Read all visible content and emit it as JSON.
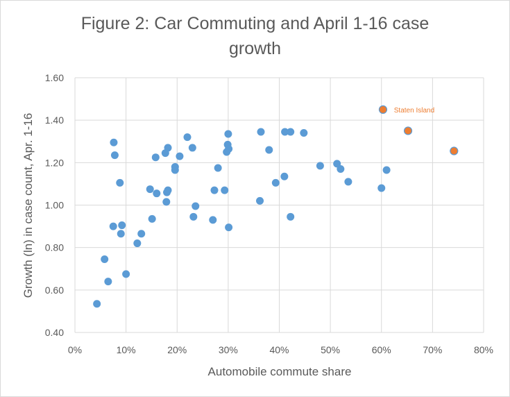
{
  "chart_data": {
    "type": "scatter",
    "title_line1": "Figure 2: Car Commuting and April 1-16 case",
    "title_line2": "growth",
    "xlabel": "Automobile commute share",
    "ylabel": "Growth (ln) in case count, Apr. 1-16",
    "xlim": [
      0,
      0.8
    ],
    "ylim": [
      0.4,
      1.6
    ],
    "x_ticks": [
      "0%",
      "10%",
      "20%",
      "30%",
      "40%",
      "50%",
      "60%",
      "70%",
      "80%"
    ],
    "y_ticks": [
      "0.40",
      "0.60",
      "0.80",
      "1.00",
      "1.20",
      "1.40",
      "1.60"
    ],
    "grid": true,
    "colors": {
      "main": "#5b9bd5",
      "highlight": "#ed7d31",
      "grid": "#d9d9d9",
      "text": "#595959"
    },
    "annotation": {
      "text": "Staten Island",
      "x": 0.6,
      "y": 1.45
    },
    "series": [
      {
        "color": "#5b9bd5",
        "points": [
          [
            0.043,
            0.535
          ],
          [
            0.058,
            0.745
          ],
          [
            0.065,
            0.64
          ],
          [
            0.075,
            0.9
          ],
          [
            0.076,
            1.295
          ],
          [
            0.078,
            1.235
          ],
          [
            0.088,
            1.105
          ],
          [
            0.09,
            0.865
          ],
          [
            0.092,
            0.905
          ],
          [
            0.1,
            0.675
          ],
          [
            0.122,
            0.82
          ],
          [
            0.13,
            0.865
          ],
          [
            0.147,
            1.075
          ],
          [
            0.151,
            0.935
          ],
          [
            0.158,
            1.225
          ],
          [
            0.16,
            1.055
          ],
          [
            0.177,
            1.245
          ],
          [
            0.179,
            1.015
          ],
          [
            0.18,
            1.06
          ],
          [
            0.182,
            1.07
          ],
          [
            0.182,
            1.27
          ],
          [
            0.196,
            1.165
          ],
          [
            0.196,
            1.18
          ],
          [
            0.205,
            1.23
          ],
          [
            0.22,
            1.32
          ],
          [
            0.23,
            1.27
          ],
          [
            0.232,
            0.945
          ],
          [
            0.236,
            0.995
          ],
          [
            0.27,
            0.93
          ],
          [
            0.273,
            1.07
          ],
          [
            0.28,
            1.175
          ],
          [
            0.293,
            1.07
          ],
          [
            0.297,
            1.25
          ],
          [
            0.299,
            1.285
          ],
          [
            0.3,
            1.335
          ],
          [
            0.301,
            1.265
          ],
          [
            0.301,
            0.895
          ],
          [
            0.362,
            1.02
          ],
          [
            0.364,
            1.345
          ],
          [
            0.38,
            1.26
          ],
          [
            0.393,
            1.105
          ],
          [
            0.41,
            1.135
          ],
          [
            0.411,
            1.345
          ],
          [
            0.422,
            1.345
          ],
          [
            0.422,
            0.945
          ],
          [
            0.448,
            1.34
          ],
          [
            0.48,
            1.185
          ],
          [
            0.513,
            1.195
          ],
          [
            0.52,
            1.17
          ],
          [
            0.535,
            1.11
          ],
          [
            0.6,
            1.08
          ],
          [
            0.61,
            1.165
          ]
        ]
      },
      {
        "color": "#ed7d31",
        "points": [
          [
            0.603,
            1.45
          ],
          [
            0.652,
            1.35
          ],
          [
            0.742,
            1.255
          ]
        ]
      }
    ]
  }
}
